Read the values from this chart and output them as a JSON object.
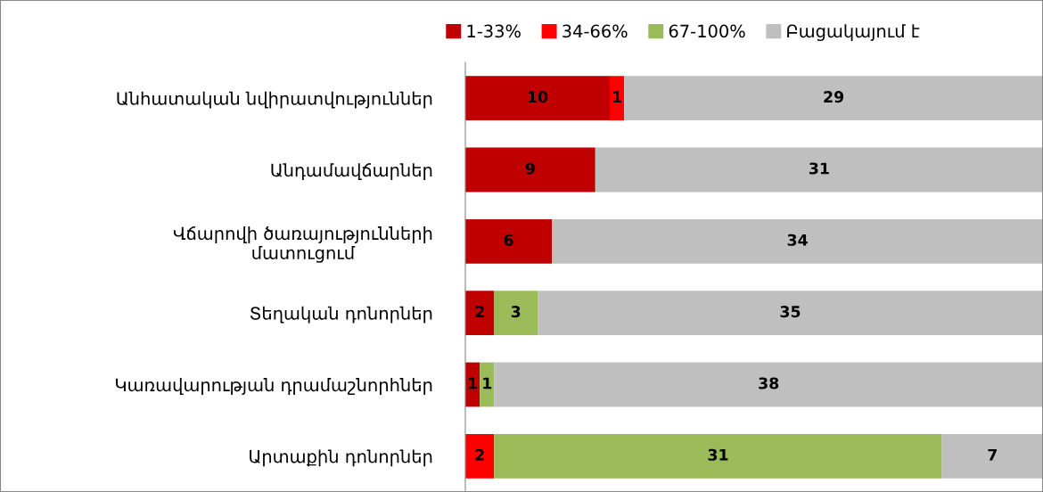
{
  "chart_data": {
    "type": "bar",
    "orientation": "horizontal",
    "stacked": true,
    "data_labels": true,
    "legend": "top",
    "grid": false,
    "tick_labels": "y",
    "xlim": [
      0,
      40
    ],
    "categories": [
      "Անհատական նվիրատվություններ",
      "Անդամավճարներ",
      "Վճարովի ծառայությունների\nմատուցում",
      "Տեղական դոնորներ",
      "Կառավարության դրամաշնորհներ",
      "Արտաքին դոնորներ"
    ],
    "series": [
      {
        "name": "1-33%",
        "color": "#c00000",
        "values": [
          10,
          9,
          6,
          2,
          1,
          null
        ]
      },
      {
        "name": "34-66%",
        "color": "#ff0000",
        "values": [
          1,
          null,
          null,
          null,
          null,
          2
        ]
      },
      {
        "name": "67-100%",
        "color": "#9bbb59",
        "values": [
          null,
          null,
          null,
          3,
          1,
          31
        ]
      },
      {
        "name": "Բացակայում է",
        "color": "#bfbfbf",
        "values": [
          29,
          31,
          34,
          35,
          38,
          7
        ]
      }
    ]
  }
}
